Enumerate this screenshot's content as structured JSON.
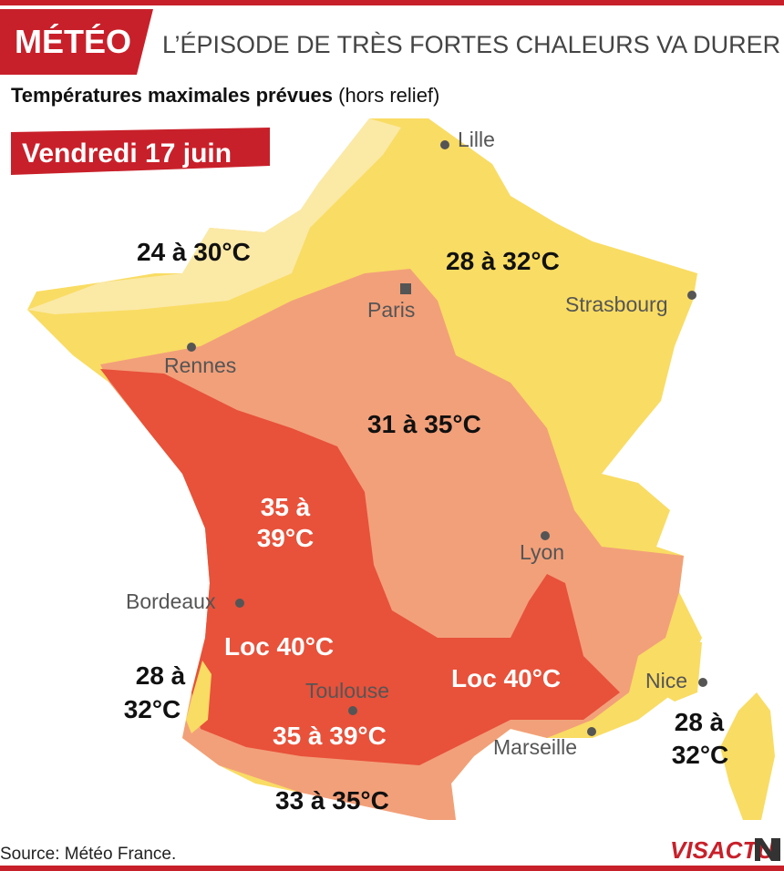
{
  "header": {
    "tag": "MÉTÉO",
    "title": "L’ÉPISODE DE TRÈS FORTES CHALEURS VA DURER"
  },
  "subtitle": {
    "bold": "Températures maximales prévues",
    "normal": "(hors relief)"
  },
  "date": "Vendredi 17 juin",
  "cities": [
    "Lille",
    "Paris",
    "Strasbourg",
    "Rennes",
    "Lyon",
    "Bordeaux",
    "Toulouse",
    "Marseille",
    "Nice"
  ],
  "zones": [
    {
      "lines": [
        "24 à 30°C"
      ]
    },
    {
      "lines": [
        "28 à 32°C"
      ]
    },
    {
      "lines": [
        "31 à 35°C"
      ]
    },
    {
      "lines": [
        "35 à",
        "39°C"
      ]
    },
    {
      "lines": [
        "Loc 40°C"
      ]
    },
    {
      "lines": [
        "Loc 40°C"
      ]
    },
    {
      "lines": [
        "28 à",
        "32°C"
      ]
    },
    {
      "lines": [
        "35 à 39°C"
      ]
    },
    {
      "lines": [
        "28 à",
        "32°C"
      ]
    },
    {
      "lines": [
        "33 à 35°C"
      ]
    }
  ],
  "source": "Source: Météo France.",
  "logo": "VISACTU"
}
